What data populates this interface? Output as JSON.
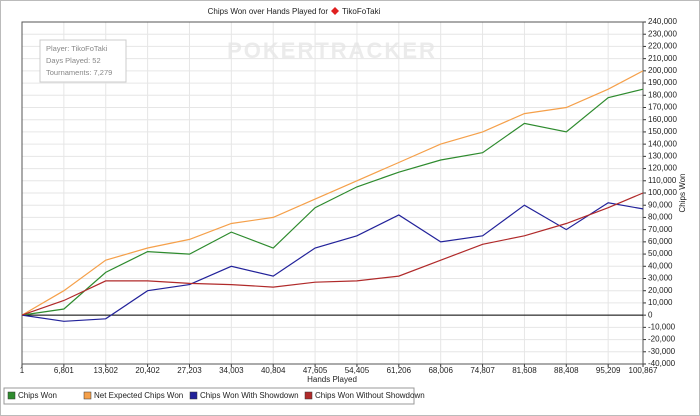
{
  "chart_data": {
    "type": "line",
    "title": "Chips Won over Hands Played for",
    "player_name": "TikoFoTaki",
    "watermark": "POKERTRACKER",
    "info": [
      "Player: TikoFoTaki",
      "Days Played: 52",
      "Tournaments: 7,279"
    ],
    "x_label": "Hands Played",
    "y_label": "Chips Won",
    "x": [
      1,
      6801,
      13602,
      20402,
      27203,
      34003,
      40804,
      47605,
      54405,
      61206,
      68006,
      74807,
      81608,
      88408,
      95209,
      100867
    ],
    "series": [
      {
        "name": "Chips Won",
        "color": "#2e8b2e",
        "values": [
          0,
          5000,
          35000,
          52000,
          50000,
          68000,
          55000,
          88000,
          105000,
          117000,
          127000,
          133000,
          157000,
          150000,
          178000,
          185000
        ]
      },
      {
        "name": "Net Expected Chips Won",
        "color": "#f5a04a",
        "values": [
          0,
          20000,
          45000,
          55000,
          62000,
          75000,
          80000,
          95000,
          110000,
          125000,
          140000,
          150000,
          165000,
          170000,
          185000,
          200000
        ]
      },
      {
        "name": "Chips Won With Showdown",
        "color": "#22229a",
        "values": [
          0,
          -5000,
          -3000,
          20000,
          25000,
          40000,
          32000,
          55000,
          65000,
          82000,
          60000,
          65000,
          90000,
          70000,
          92000,
          87000
        ]
      },
      {
        "name": "Chips Won Without Showdown",
        "color": "#b02a2a",
        "values": [
          0,
          12000,
          28000,
          28000,
          26000,
          25000,
          23000,
          27000,
          28000,
          32000,
          45000,
          58000,
          65000,
          75000,
          88000,
          100000
        ]
      }
    ],
    "xlim": [
      1,
      100867
    ],
    "xticks": [
      1,
      {
        "value": 6801,
        "label": "6,801"
      },
      {
        "value": 13602,
        "label": "13,602"
      },
      {
        "value": 20402,
        "label": "20,402"
      },
      {
        "value": 27203,
        "label": "27,203"
      },
      {
        "value": 34003,
        "label": "34,003"
      },
      {
        "value": 40804,
        "label": "40,804"
      },
      {
        "value": 47605,
        "label": "47,605"
      },
      {
        "value": 54405,
        "label": "54,405"
      },
      {
        "value": 61206,
        "label": "61,206"
      },
      {
        "value": 68006,
        "label": "68,006"
      },
      {
        "value": 74807,
        "label": "74,807"
      },
      {
        "value": 81608,
        "label": "81,608"
      },
      {
        "value": 88408,
        "label": "88,408"
      },
      {
        "value": 95209,
        "label": "95,209"
      },
      {
        "value": 100867,
        "label": "100,867"
      }
    ],
    "ylim": [
      -40000,
      240000
    ],
    "yticks": [
      {
        "value": -40000,
        "label": "-40,000"
      },
      {
        "value": -30000,
        "label": "-30,000"
      },
      {
        "value": -20000,
        "label": "-20,000"
      },
      {
        "value": -10000,
        "label": "-10,000"
      },
      0,
      {
        "value": 10000,
        "label": "10,000"
      },
      {
        "value": 20000,
        "label": "20,000"
      },
      {
        "value": 30000,
        "label": "30,000"
      },
      {
        "value": 40000,
        "label": "40,000"
      },
      {
        "value": 50000,
        "label": "50,000"
      },
      {
        "value": 60000,
        "label": "60,000"
      },
      {
        "value": 70000,
        "label": "70,000"
      },
      {
        "value": 80000,
        "label": "80,000"
      },
      {
        "value": 90000,
        "label": "90,000"
      },
      {
        "value": 100000,
        "label": "100,000"
      },
      {
        "value": 110000,
        "label": "110,000"
      },
      {
        "value": 120000,
        "label": "120,000"
      },
      {
        "value": 130000,
        "label": "130,000"
      },
      {
        "value": 140000,
        "label": "140,000"
      },
      {
        "value": 150000,
        "label": "150,000"
      },
      {
        "value": 160000,
        "label": "160,000"
      },
      {
        "value": 170000,
        "label": "170,000"
      },
      {
        "value": 180000,
        "label": "180,000"
      },
      {
        "value": 190000,
        "label": "190,000"
      },
      {
        "value": 200000,
        "label": "200,000"
      },
      {
        "value": 210000,
        "label": "210,000"
      },
      {
        "value": 220000,
        "label": "220,000"
      },
      {
        "value": 230000,
        "label": "230,000"
      },
      {
        "value": 240000,
        "label": "240,000"
      }
    ],
    "grid": true
  }
}
